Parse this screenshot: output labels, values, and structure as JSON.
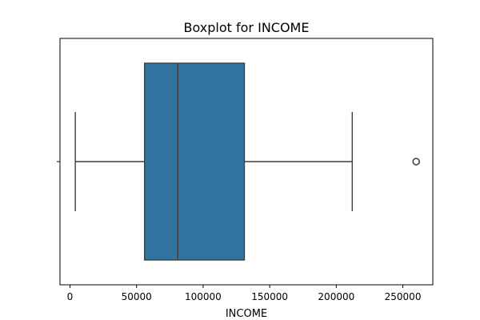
{
  "chart_data": {
    "type": "box",
    "title": "Boxplot for INCOME",
    "xlabel": "INCOME",
    "ylabel": "",
    "orientation": "horizontal",
    "xlim": [
      -7500,
      272500
    ],
    "x_ticks": [
      0,
      50000,
      100000,
      150000,
      200000,
      250000
    ],
    "x_tick_labels": [
      "0",
      "50000",
      "100000",
      "150000",
      "200000",
      "250000"
    ],
    "grid": false,
    "series": [
      {
        "whisker_low": 4000,
        "q1": 56000,
        "median": 81000,
        "q3": 131000,
        "whisker_high": 212000,
        "outliers": [
          260000
        ]
      }
    ],
    "colors": {
      "box_fill": "#3274a1",
      "box_edge": "#3f3f3f",
      "whisker": "#3f3f3f",
      "outlier": "#3f3f3f",
      "axes": "#000000"
    }
  }
}
